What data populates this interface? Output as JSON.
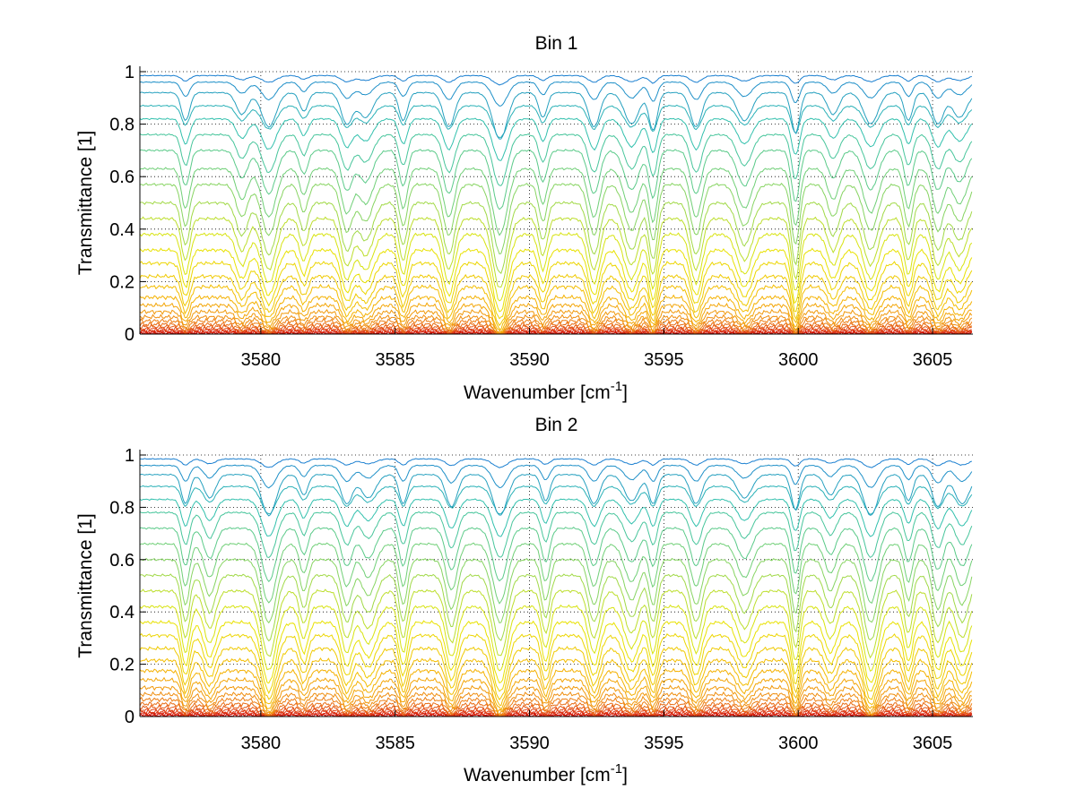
{
  "chart_data": [
    {
      "type": "line",
      "title": "Bin 1",
      "xlabel_main": "Wavenumber [cm",
      "xlabel_sup": "-1",
      "xlabel_end": "]",
      "ylabel": "Transmittance [1]",
      "xlim": [
        3575.5,
        3606.5
      ],
      "ylim": [
        0,
        1
      ],
      "xticks": [
        3580,
        3585,
        3590,
        3595,
        3600,
        3605
      ],
      "xtick_labels": [
        "3580",
        "3585",
        "3590",
        "3595",
        "3600",
        "3605"
      ],
      "yticks": [
        0,
        0.2,
        0.4,
        0.6,
        0.8,
        1
      ],
      "ytick_labels": [
        "0",
        "0.2",
        "0.4",
        "0.6",
        "0.8",
        "1"
      ],
      "grid": "dotted",
      "colormap": [
        "#cc0000",
        "#e2471a",
        "#ef8a10",
        "#f5b800",
        "#e6e600",
        "#7fd36a",
        "#2fbfb0",
        "#1a7fd0"
      ],
      "series_count": 28,
      "series_baselines": [
        0.003,
        0.006,
        0.01,
        0.015,
        0.02,
        0.028,
        0.037,
        0.05,
        0.065,
        0.085,
        0.11,
        0.14,
        0.18,
        0.22,
        0.27,
        0.32,
        0.38,
        0.44,
        0.5,
        0.57,
        0.63,
        0.7,
        0.76,
        0.82,
        0.87,
        0.92,
        0.96,
        0.985
      ],
      "absorption_lines": [
        3577.2,
        3579.3,
        3580.3,
        3581.6,
        3583.2,
        3583.9,
        3585.3,
        3587.0,
        3588.9,
        3590.5,
        3592.4,
        3593.8,
        3594.6,
        3596.2,
        3598.0,
        3599.9,
        3601.3,
        3602.7,
        3604.1,
        3605.2,
        3606.0
      ],
      "absorption_strengths": [
        0.45,
        0.35,
        0.55,
        0.3,
        0.5,
        0.4,
        0.45,
        0.55,
        0.75,
        0.4,
        0.55,
        0.5,
        0.6,
        0.55,
        0.45,
        0.65,
        0.35,
        0.5,
        0.45,
        0.5,
        0.4
      ]
    },
    {
      "type": "line",
      "title": "Bin 2",
      "xlabel_main": "Wavenumber [cm",
      "xlabel_sup": "-1",
      "xlabel_end": "]",
      "ylabel": "Transmittance [1]",
      "xlim": [
        3575.5,
        3606.5
      ],
      "ylim": [
        0,
        1
      ],
      "xticks": [
        3580,
        3585,
        3590,
        3595,
        3600,
        3605
      ],
      "xtick_labels": [
        "3580",
        "3585",
        "3590",
        "3595",
        "3600",
        "3605"
      ],
      "yticks": [
        0,
        0.2,
        0.4,
        0.6,
        0.8,
        1
      ],
      "ytick_labels": [
        "0",
        "0.2",
        "0.4",
        "0.6",
        "0.8",
        "1"
      ],
      "grid": "dotted",
      "colormap": [
        "#cc0000",
        "#e2471a",
        "#ef8a10",
        "#f5b800",
        "#e6e600",
        "#7fd36a",
        "#2fbfb0",
        "#1a7fd0"
      ],
      "series_count": 28,
      "series_baselines": [
        0.004,
        0.008,
        0.012,
        0.018,
        0.025,
        0.035,
        0.048,
        0.065,
        0.085,
        0.11,
        0.14,
        0.175,
        0.215,
        0.26,
        0.31,
        0.36,
        0.42,
        0.48,
        0.54,
        0.6,
        0.66,
        0.72,
        0.78,
        0.83,
        0.88,
        0.925,
        0.96,
        0.985
      ],
      "absorption_lines": [
        3577.2,
        3578.1,
        3580.3,
        3581.6,
        3583.2,
        3584.0,
        3585.3,
        3587.1,
        3588.9,
        3590.6,
        3592.4,
        3593.8,
        3594.6,
        3596.2,
        3598.0,
        3599.9,
        3601.2,
        3602.7,
        3604.1,
        3605.2,
        3606.1
      ],
      "absorption_strengths": [
        0.5,
        0.4,
        0.7,
        0.35,
        0.5,
        0.4,
        0.5,
        0.55,
        0.7,
        0.45,
        0.5,
        0.45,
        0.5,
        0.5,
        0.4,
        0.6,
        0.35,
        0.7,
        0.45,
        0.55,
        0.5
      ]
    }
  ]
}
